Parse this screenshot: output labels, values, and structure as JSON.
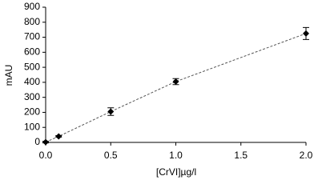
{
  "chart_data": {
    "type": "scatter",
    "x_label": "[CrVI]µg/l",
    "y_label": "mAU",
    "x": [
      0,
      0.1,
      0.5,
      1.0,
      2.0
    ],
    "values": [
      2,
      40,
      205,
      405,
      725
    ],
    "errors": [
      5,
      5,
      25,
      20,
      40
    ],
    "color": "#000000",
    "trend_line": "dashed",
    "xlim": [
      0,
      2.0
    ],
    "xticks": [
      {
        "value": 0,
        "label": "0.0"
      },
      0.5,
      {
        "value": 1.0,
        "label": "1.0"
      },
      1.5,
      {
        "value": 2.0,
        "label": "2.0"
      }
    ],
    "ylim": [
      0,
      900
    ],
    "yticks": [
      0,
      100,
      200,
      300,
      400,
      500,
      600,
      700,
      800,
      900
    ]
  }
}
